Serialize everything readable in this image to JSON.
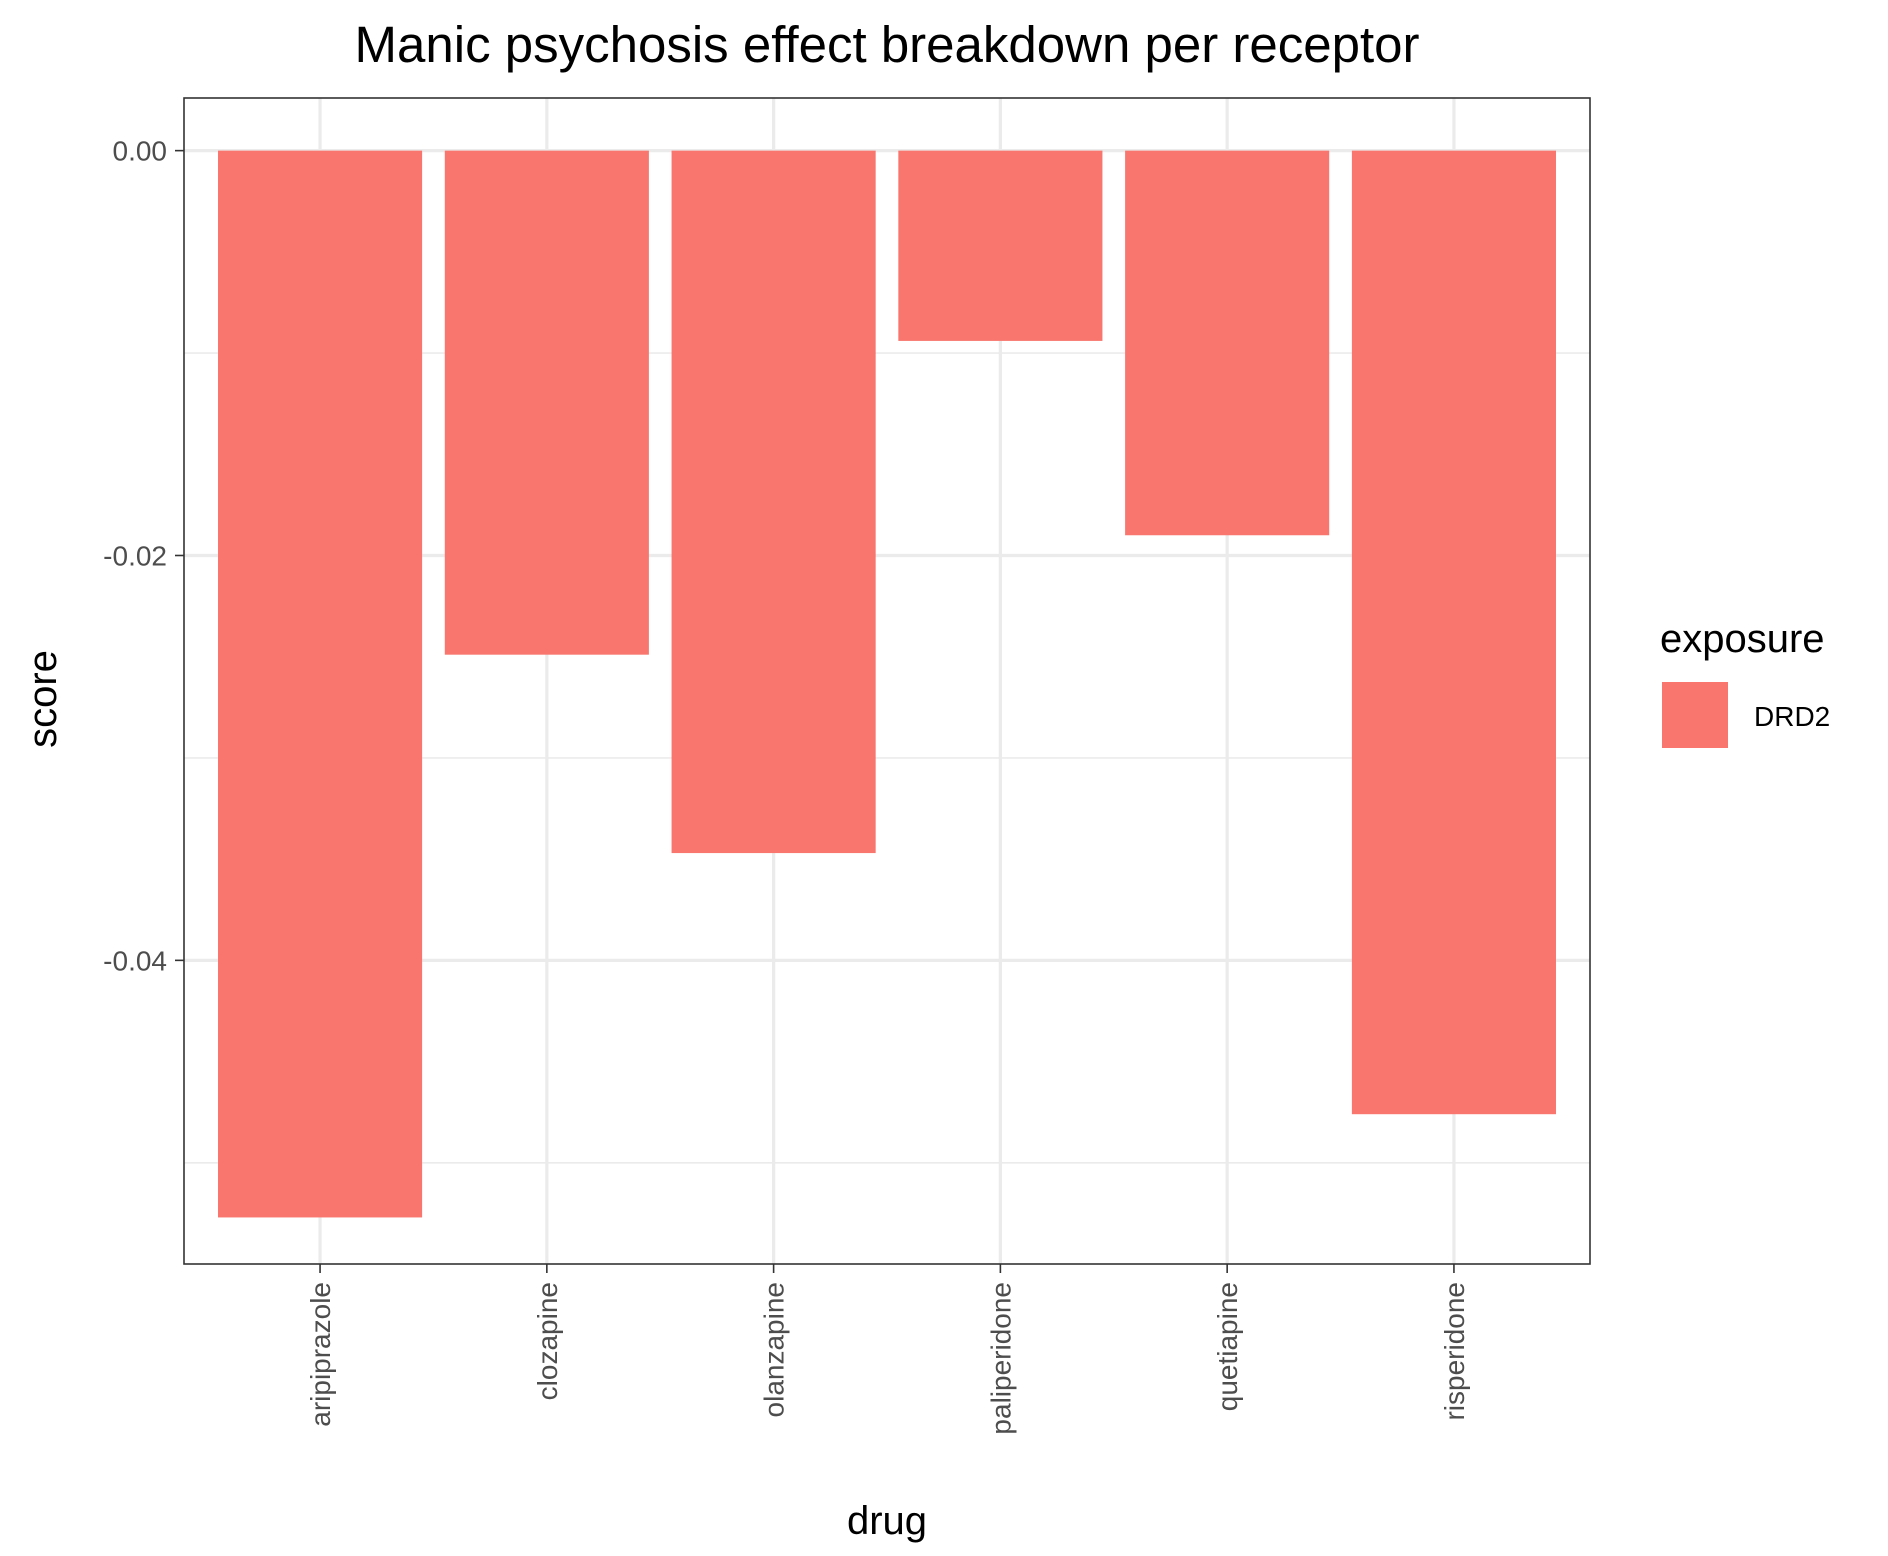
{
  "chart_data": {
    "type": "bar",
    "title": "Manic psychosis effect breakdown per receptor",
    "xlabel": "drug",
    "ylabel": "score",
    "categories": [
      "aripiprazole",
      "clozapine",
      "olanzapine",
      "paliperidone",
      "quetiapine",
      "risperidone"
    ],
    "series": [
      {
        "name": "DRD2",
        "values": [
          -0.0527,
          -0.0249,
          -0.0347,
          -0.0094,
          -0.019,
          -0.0476
        ]
      }
    ],
    "ylim": [
      -0.055,
      0.0026
    ],
    "yticks": [
      0.0,
      -0.02,
      -0.04
    ],
    "ytick_labels": [
      "0.00",
      "-0.02",
      "-0.04"
    ],
    "grid": true,
    "legend": {
      "title": "exposure",
      "placement": "right"
    },
    "colors": {
      "bar": "#F8766D",
      "grid": "#ebebeb",
      "panel_border": "#333333"
    }
  }
}
